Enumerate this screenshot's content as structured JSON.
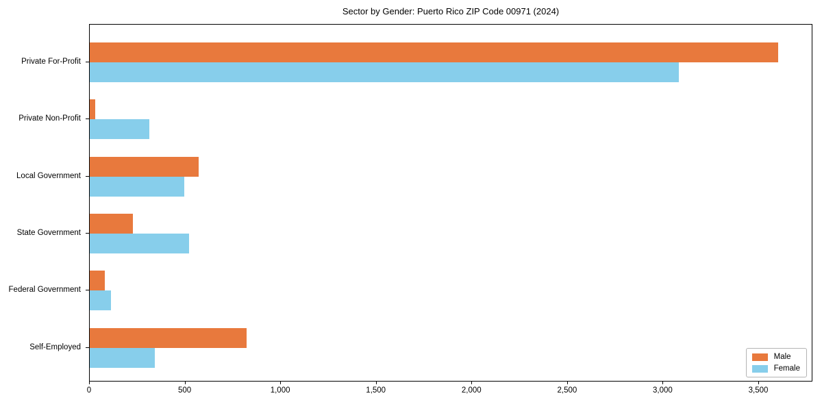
{
  "chart_data": {
    "type": "bar",
    "orientation": "horizontal",
    "title": "Sector by Gender: Puerto Rico ZIP Code 00971 (2024)",
    "categories": [
      "Private For-Profit",
      "Private Non-Profit",
      "Local Government",
      "State Government",
      "Federal Government",
      "Self-Employed"
    ],
    "series": [
      {
        "name": "Male",
        "color": "#e8793d",
        "values": [
          3600,
          28,
          570,
          225,
          80,
          820
        ]
      },
      {
        "name": "Female",
        "color": "#87ceeb",
        "values": [
          3080,
          310,
          495,
          520,
          110,
          340
        ]
      }
    ],
    "xlim": [
      0,
      3783
    ],
    "xticks": [
      {
        "value": 0,
        "label": "0"
      },
      {
        "value": 500,
        "label": "500"
      },
      {
        "value": 1000,
        "label": "1,000"
      },
      {
        "value": 1500,
        "label": "1,500"
      },
      {
        "value": 2000,
        "label": "2,000"
      },
      {
        "value": 2500,
        "label": "2,500"
      },
      {
        "value": 3000,
        "label": "3,000"
      },
      {
        "value": 3500,
        "label": "3,500"
      }
    ],
    "grid": false,
    "legend_position": "lower right",
    "spine_color": "#000000",
    "background_color": "#ffffff"
  }
}
